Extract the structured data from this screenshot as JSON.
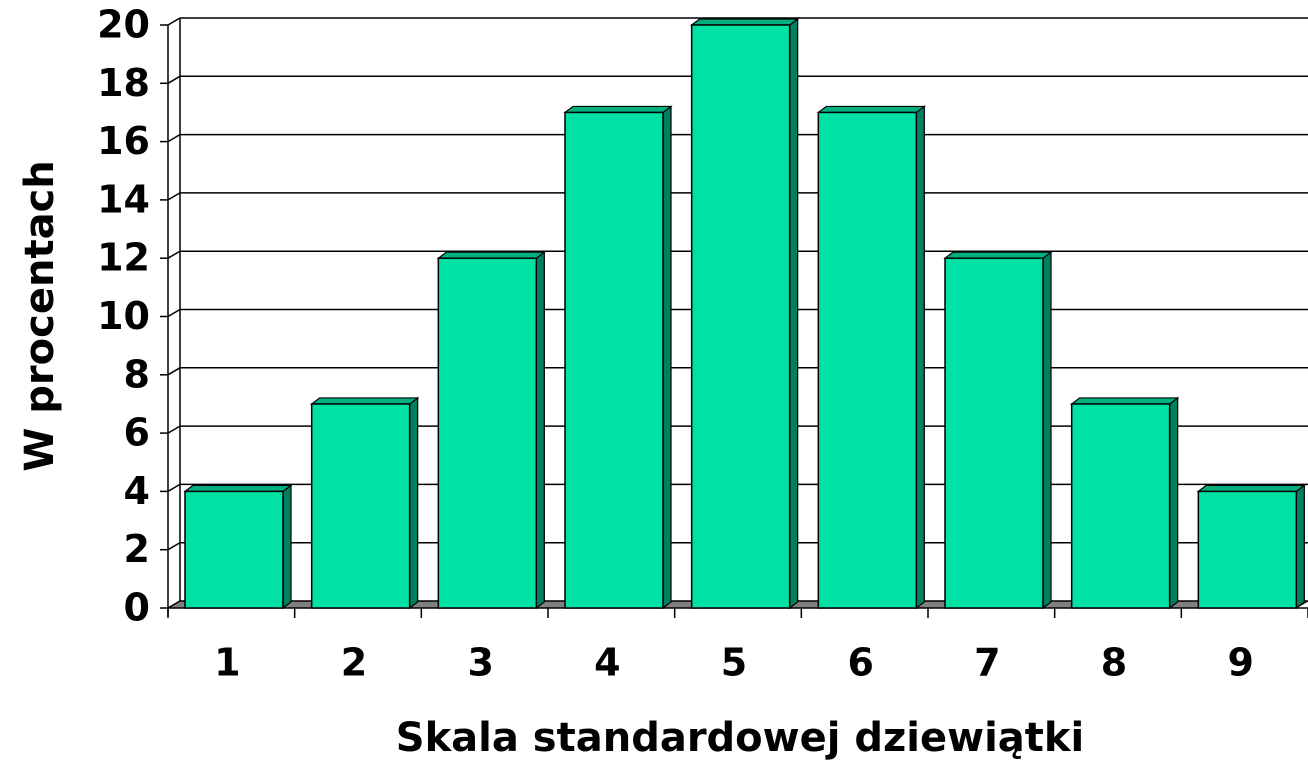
{
  "chart_data": {
    "type": "bar",
    "x_label": "Skala standardowej dziewiątki",
    "y_label": "W procentach",
    "categories": [
      "1",
      "2",
      "3",
      "4",
      "5",
      "6",
      "7",
      "8",
      "9"
    ],
    "values": [
      4,
      7,
      12,
      17,
      20,
      17,
      12,
      7,
      4
    ],
    "color": "#00e1a5",
    "ylim": [
      0,
      20
    ],
    "yticks": [
      0,
      2,
      4,
      6,
      8,
      10,
      12,
      14,
      16,
      18,
      20
    ],
    "grid": true
  }
}
